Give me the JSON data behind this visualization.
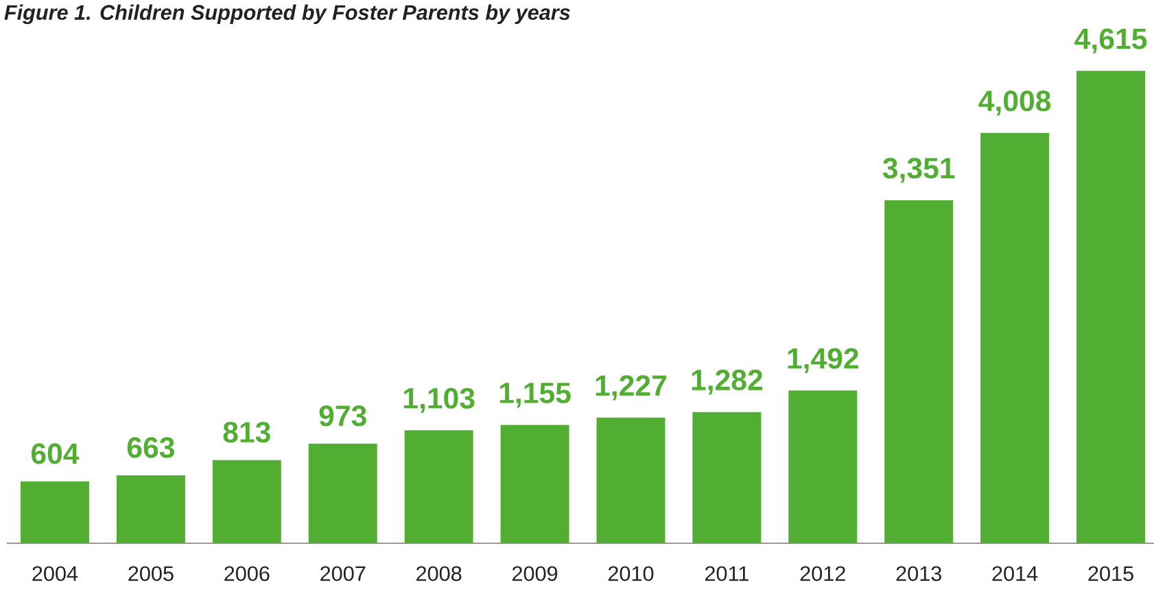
{
  "chart_data": {
    "type": "bar",
    "title": "Figure 1. Children Supported by Foster Parents by years",
    "categories": [
      "2004",
      "2005",
      "2006",
      "2007",
      "2008",
      "2009",
      "2010",
      "2011",
      "2012",
      "2013",
      "2014",
      "2015"
    ],
    "values": [
      604,
      663,
      813,
      973,
      1103,
      1155,
      1227,
      1282,
      1492,
      3351,
      4008,
      4615
    ],
    "value_labels": [
      "604",
      "663",
      "813",
      "973",
      "1,103",
      "1,155",
      "1,227",
      "1,282",
      "1,492",
      "3,351",
      "4,008",
      "4,615"
    ],
    "color": "#52ae32"
  }
}
